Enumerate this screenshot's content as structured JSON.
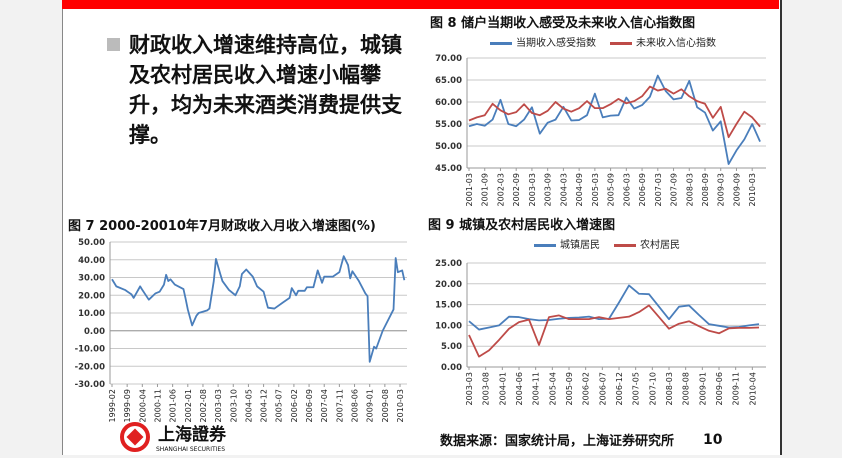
{
  "bullet": {
    "text": "财政收入增速维持高位，城镇及农村居民收入增速小幅攀升，均为未来酒类消费提供支撑。"
  },
  "footer": {
    "source": "数据来源：国家统计局，上海证券研究所",
    "page": "10",
    "logo_text": "上海證券",
    "logo_sub": "SHANGHAI SECURITIES"
  },
  "colors": {
    "accent": "#ff0000",
    "blue": "#4a7ebb",
    "red": "#be4b48"
  },
  "chart_data": [
    {
      "id": "fig8",
      "type": "line",
      "title": "图 8 储户当期收入感受及未来收入信心指数图",
      "ylim": [
        45,
        70
      ],
      "yticks": [
        "70.00",
        "65.00",
        "60.00",
        "55.00",
        "50.00",
        "45.00"
      ],
      "xticklabels": [
        "2001-03",
        "2001-09",
        "2002-03",
        "2002-09",
        "2003-03",
        "2003-09",
        "2004-03",
        "2004-09",
        "2005-03",
        "2005-09",
        "2006-03",
        "2006-09",
        "2007-03",
        "2007-09",
        "2008-03",
        "2008-09",
        "2009-03",
        "2009-09",
        "2010-03"
      ],
      "legend": "top",
      "grid": true,
      "series": [
        {
          "name": "当期收入感受指数",
          "color": "#4a7ebb",
          "values": [
            54.5,
            55.0,
            54.6,
            56.0,
            60.5,
            55.0,
            54.5,
            56.0,
            58.8,
            52.8,
            55.3,
            56.0,
            58.9,
            55.8,
            55.9,
            57.0,
            61.9,
            56.5,
            56.9,
            57.0,
            61.0,
            58.5,
            59.3,
            61.2,
            66.0,
            62.5,
            60.6,
            60.9,
            64.8,
            58.8,
            57.6,
            53.5,
            55.6,
            45.9,
            49.0,
            51.5,
            55.0,
            51.0
          ]
        },
        {
          "name": "未来收入信心指数",
          "color": "#be4b48",
          "values": [
            55.8,
            56.5,
            57.0,
            59.6,
            58.1,
            57.2,
            57.7,
            59.5,
            57.5,
            57.0,
            58.0,
            60.0,
            58.5,
            57.8,
            58.6,
            60.2,
            58.6,
            58.6,
            59.5,
            60.7,
            59.7,
            60.2,
            61.3,
            63.5,
            62.6,
            63.0,
            61.9,
            62.9,
            61.3,
            60.2,
            59.6,
            56.4,
            58.9,
            52.0,
            55.0,
            57.8,
            56.5,
            54.4
          ]
        }
      ]
    },
    {
      "id": "fig7",
      "type": "line",
      "title": "图 7 2000-20010年7月财政收入月收入增速图(%)",
      "ylim": [
        -30,
        50
      ],
      "yticks": [
        "50.00",
        "40.00",
        "30.00",
        "20.00",
        "10.00",
        "0.00",
        "-10.00",
        "-20.00",
        "-30.00"
      ],
      "xticklabels": [
        "1999-02",
        "1999-09",
        "2000-04",
        "2000-11",
        "2001-06",
        "2002-01",
        "2002-08",
        "2003-03",
        "2003-10",
        "2004-05",
        "2004-12",
        "2005-07",
        "2006-02",
        "2006-09",
        "2007-04",
        "2007-11",
        "2008-06",
        "2009-01",
        "2009-08",
        "2010-03"
      ],
      "grid": true,
      "series": [
        {
          "color": "#4a7ebb",
          "points": [
            [
              "1999-02",
              29
            ],
            [
              "1999-04",
              25
            ],
            [
              "1999-05",
              24.5
            ],
            [
              "1999-08",
              23
            ],
            [
              "1999-11",
              20.5
            ],
            [
              "1999-12",
              18.5
            ],
            [
              "2000-03",
              25
            ],
            [
              "2000-04",
              23
            ],
            [
              "2000-07",
              17.5
            ],
            [
              "2000-10",
              21
            ],
            [
              "2000-12",
              22
            ],
            [
              "2001-02",
              26
            ],
            [
              "2001-03",
              31.5
            ],
            [
              "2001-04",
              28
            ],
            [
              "2001-05",
              29
            ],
            [
              "2001-07",
              26
            ],
            [
              "2001-11",
              23.5
            ],
            [
              "2001-12",
              18
            ],
            [
              "2002-01",
              12
            ],
            [
              "2002-03",
              3
            ],
            [
              "2002-05",
              8.5
            ],
            [
              "2002-06",
              10
            ],
            [
              "2002-10",
              11.5
            ],
            [
              "2002-11",
              12.5
            ],
            [
              "2003-01",
              28
            ],
            [
              "2003-02",
              40.5
            ],
            [
              "2003-04",
              32
            ],
            [
              "2003-05",
              28
            ],
            [
              "2003-08",
              23
            ],
            [
              "2003-11",
              20
            ],
            [
              "2004-01",
              25
            ],
            [
              "2004-02",
              32
            ],
            [
              "2004-04",
              34.5
            ],
            [
              "2004-07",
              30.5
            ],
            [
              "2004-09",
              25
            ],
            [
              "2004-12",
              22
            ],
            [
              "2005-02",
              13
            ],
            [
              "2005-05",
              12.5
            ],
            [
              "2005-09",
              16
            ],
            [
              "2005-12",
              18.5
            ],
            [
              "2006-01",
              24
            ],
            [
              "2006-03",
              20
            ],
            [
              "2006-04",
              22.5
            ],
            [
              "2006-07",
              22.5
            ],
            [
              "2006-08",
              24.5
            ],
            [
              "2006-11",
              24.5
            ],
            [
              "2007-01",
              34
            ],
            [
              "2007-03",
              27
            ],
            [
              "2007-04",
              30.5
            ],
            [
              "2007-08",
              30.5
            ],
            [
              "2007-11",
              33
            ],
            [
              "2008-01",
              42
            ],
            [
              "2008-03",
              37
            ],
            [
              "2008-04",
              29.5
            ],
            [
              "2008-05",
              33.5
            ],
            [
              "2008-08",
              28
            ],
            [
              "2008-11",
              21
            ],
            [
              "2008-12",
              19.5
            ],
            [
              "2009-01",
              -17.5
            ],
            [
              "2009-03",
              -9
            ],
            [
              "2009-04",
              -10
            ],
            [
              "2009-07",
              0
            ],
            [
              "2009-12",
              12
            ],
            [
              "2010-01",
              41
            ],
            [
              "2010-02",
              33
            ],
            [
              "2010-04",
              34
            ],
            [
              "2010-05",
              28.5
            ]
          ]
        }
      ]
    },
    {
      "id": "fig9",
      "type": "line",
      "title": "图 9 城镇及农村居民收入增速图",
      "ylim": [
        0,
        25
      ],
      "yticks": [
        "25.00",
        "20.00",
        "15.00",
        "10.00",
        "5.00",
        "0.00"
      ],
      "xticklabels": [
        "2003-03",
        "2003-08",
        "2004-01",
        "2004-06",
        "2004-11",
        "2005-04",
        "2005-09",
        "2006-02",
        "2006-07",
        "2006-12",
        "2007-05",
        "2007-10",
        "2008-03",
        "2008-08",
        "2009-01",
        "2009-06",
        "2009-11",
        "2010-04"
      ],
      "legend": "top",
      "grid": true,
      "series": [
        {
          "name": "城镇居民",
          "color": "#4a7ebb",
          "values": [
            11.0,
            9.0,
            9.5,
            10.0,
            12.1,
            12.0,
            11.5,
            11.2,
            11.3,
            11.6,
            11.8,
            11.9,
            12.1,
            11.5,
            11.6,
            15.5,
            19.6,
            17.6,
            17.5,
            14.5,
            11.5,
            14.5,
            14.8,
            12.5,
            10.3,
            9.9,
            9.5,
            9.6,
            10.0,
            10.3
          ]
        },
        {
          "name": "农村居民",
          "color": "#be4b48",
          "values": [
            7.7,
            2.5,
            4.0,
            6.5,
            9.2,
            10.8,
            11.4,
            5.3,
            12.0,
            12.4,
            11.5,
            11.5,
            11.5,
            12.0,
            11.5,
            11.8,
            12.1,
            13.2,
            14.8,
            12.0,
            9.2,
            10.4,
            11.0,
            9.8,
            8.7,
            8.1,
            9.3,
            9.4,
            9.4,
            9.5
          ]
        }
      ]
    }
  ]
}
